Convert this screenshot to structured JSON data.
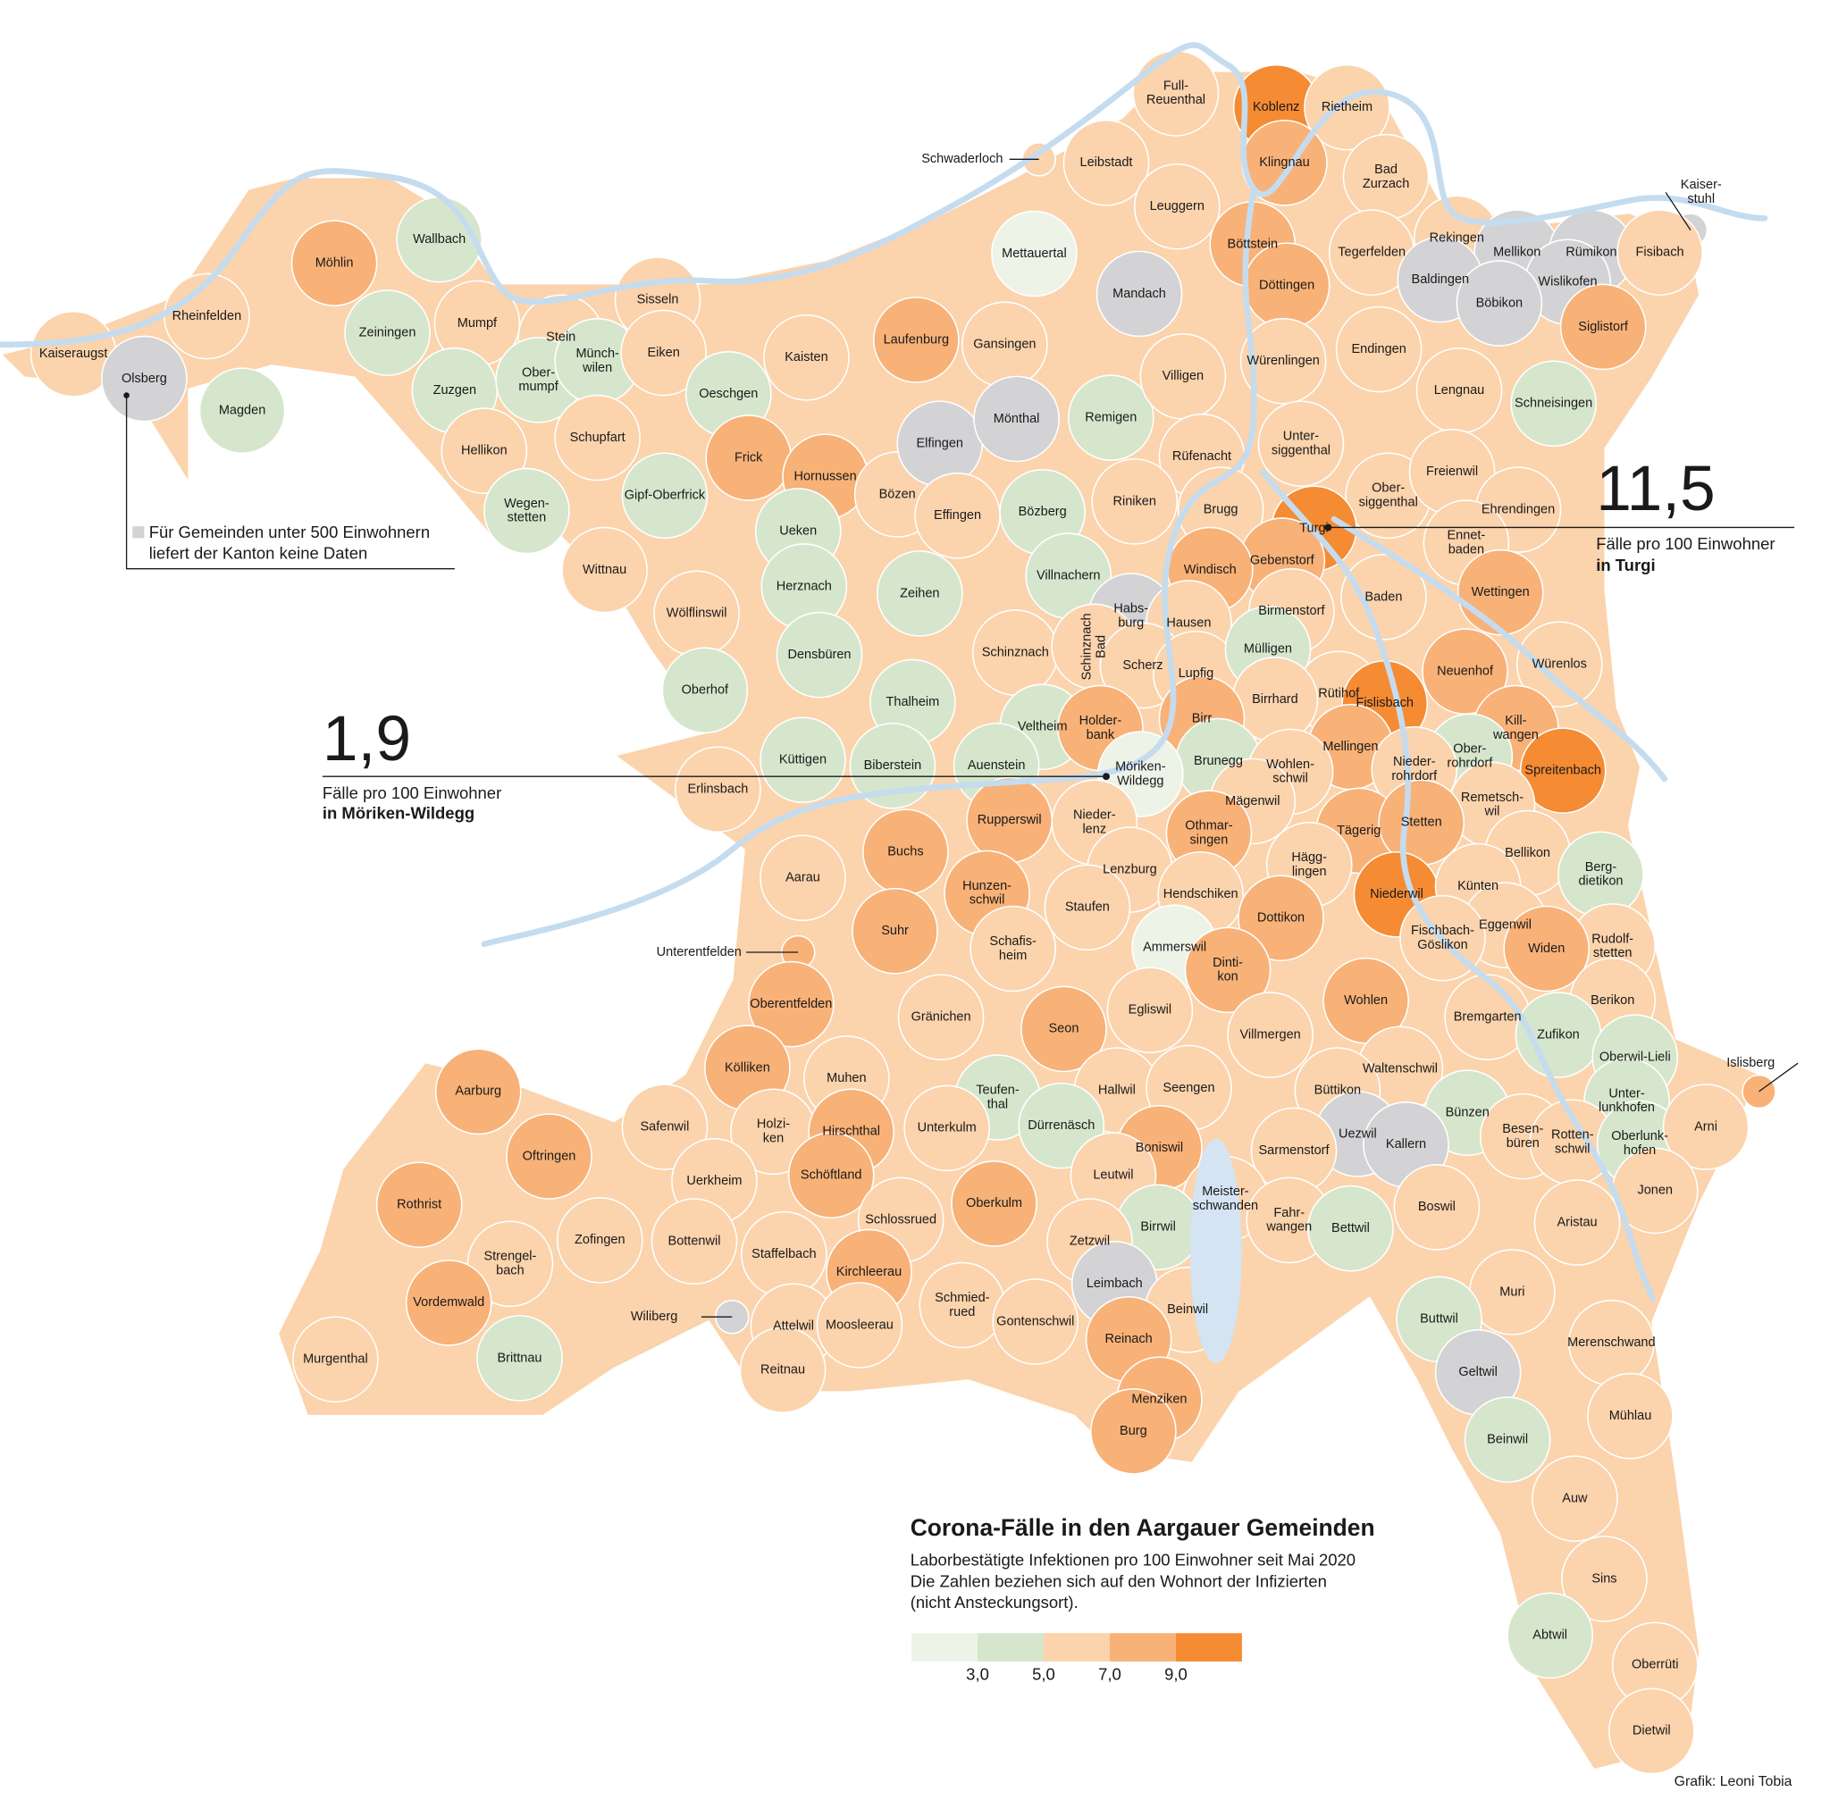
{
  "title": "Corona-Fälle in den Aargauer Gemeinden",
  "subtitle": [
    "Laborbestätigte Infektionen pro 100 Einwohner seit Mai 2020",
    "Die Zahlen beziehen sich auf den Wohnort der Infizierten",
    "(nicht Ansteckungsort)."
  ],
  "legend": {
    "colors": [
      "#eef3e8",
      "#d5e6cc",
      "#fbd3ac",
      "#f8b177",
      "#f58b33"
    ],
    "ticks": [
      {
        "value": 3,
        "label": "3,0"
      },
      {
        "value": 5,
        "label": "5,0"
      },
      {
        "value": 7,
        "label": "7,0"
      },
      {
        "value": 9,
        "label": "9,0"
      }
    ]
  },
  "no_data": {
    "color": "#d3d3d6",
    "text": [
      "Für Gemeinden unter 500 Einwohnern",
      "liefert der Kanton keine Daten"
    ]
  },
  "callouts": [
    {
      "value": "11,5",
      "text": "Fälle pro 100 Einwohner",
      "place": "in Turgi"
    },
    {
      "value": "1,9",
      "text": "Fälle pro 100 Einwohner",
      "place": "in Möriken-Wildegg"
    }
  ],
  "credit": "Grafik: Leoni Tobia",
  "municipalities": [
    {
      "name": "Kaiseraugst",
      "color": "#fbd3ac"
    },
    {
      "name": "Olsberg",
      "color": "#d3d3d6"
    },
    {
      "name": "Rheinfelden",
      "color": "#fbd3ac"
    },
    {
      "name": "Möhlin",
      "color": "#f8b177"
    },
    {
      "name": "Wallbach",
      "color": "#d5e6cc"
    },
    {
      "name": "Zeiningen",
      "color": "#d5e6cc"
    },
    {
      "name": "Magden",
      "color": "#d5e6cc"
    },
    {
      "name": "Mumpf",
      "color": "#fbd3ac"
    },
    {
      "name": "Stein",
      "color": "#fbd3ac"
    },
    {
      "name": "Zuzgen",
      "color": "#d5e6cc"
    },
    {
      "name": [
        "Ober-",
        "mumpf"
      ],
      "color": "#d5e6cc"
    },
    {
      "name": [
        "Münch-",
        "wilen"
      ],
      "color": "#d5e6cc"
    },
    {
      "name": "Sisseln",
      "color": "#fbd3ac"
    },
    {
      "name": "Eiken",
      "color": "#fbd3ac"
    },
    {
      "name": "Hellikon",
      "color": "#fbd3ac"
    },
    {
      "name": "Schupfart",
      "color": "#fbd3ac"
    },
    {
      "name": [
        "Wegen-",
        "stetten"
      ],
      "color": "#d5e6cc"
    },
    {
      "name": "Kaisten",
      "color": "#fbd3ac"
    },
    {
      "name": "Laufenburg",
      "color": "#f8b177"
    },
    {
      "name": "Gansingen",
      "color": "#fbd3ac"
    },
    {
      "name": "Mettauertal",
      "color": "#eef3e8"
    },
    {
      "name": "Oeschgen",
      "color": "#d5e6cc"
    },
    {
      "name": "Frick",
      "color": "#f8b177"
    },
    {
      "name": "Hornussen",
      "color": "#f8b177"
    },
    {
      "name": "Gipf-Oberfrick",
      "color": "#d5e6cc"
    },
    {
      "name": "Ueken",
      "color": "#d5e6cc"
    },
    {
      "name": "Wittnau",
      "color": "#fbd3ac"
    },
    {
      "name": "Herznach",
      "color": "#d5e6cc"
    },
    {
      "name": "Bözen",
      "color": "#fbd3ac"
    },
    {
      "name": "Elfingen",
      "color": "#d3d3d6"
    },
    {
      "name": "Effingen",
      "color": "#fbd3ac"
    },
    {
      "name": "Mönthal",
      "color": "#d3d3d6"
    },
    {
      "name": "Remigen",
      "color": "#d5e6cc"
    },
    {
      "name": "Bözberg",
      "color": "#d5e6cc"
    },
    {
      "name": "Zeihen",
      "color": "#d5e6cc"
    },
    {
      "name": "Villnachern",
      "color": "#d5e6cc"
    },
    {
      "name": "Wölflinswil",
      "color": "#fbd3ac"
    },
    {
      "name": "Densbüren",
      "color": "#d5e6cc"
    },
    {
      "name": "Oberhof",
      "color": "#d5e6cc"
    },
    {
      "name": "Thalheim",
      "color": "#d5e6cc"
    },
    {
      "name": "Schinznach",
      "color": "#fbd3ac"
    },
    {
      "name": "Veltheim",
      "color": "#d5e6cc"
    },
    {
      "name": "Küttigen",
      "color": "#d5e6cc"
    },
    {
      "name": "Biberstein",
      "color": "#d5e6cc"
    },
    {
      "name": "Auenstein",
      "color": "#d5e6cc"
    },
    {
      "name": "Erlinsbach",
      "color": "#fbd3ac"
    },
    {
      "name": "Aarau",
      "color": "#fbd3ac"
    },
    {
      "name": "Schwaderloch",
      "color": "#fbd3ac"
    },
    {
      "name": "Leibstadt",
      "color": "#fbd3ac"
    },
    {
      "name": [
        "Full-",
        "Reuenthal"
      ],
      "color": "#fbd3ac"
    },
    {
      "name": "Leuggern",
      "color": "#fbd3ac"
    },
    {
      "name": "Koblenz",
      "color": "#f58b33"
    },
    {
      "name": "Rietheim",
      "color": "#fbd3ac"
    },
    {
      "name": "Klingnau",
      "color": "#f8b177"
    },
    {
      "name": [
        "Bad",
        "Zurzach"
      ],
      "color": "#fbd3ac"
    },
    {
      "name": "Böttstein",
      "color": "#f8b177"
    },
    {
      "name": "Döttingen",
      "color": "#f8b177"
    },
    {
      "name": "Mandach",
      "color": "#d3d3d6"
    },
    {
      "name": "Tegerfelden",
      "color": "#fbd3ac"
    },
    {
      "name": "Rekingen",
      "color": "#fbd3ac"
    },
    {
      "name": "Mellikon",
      "color": "#d3d3d6"
    },
    {
      "name": "Rümikon",
      "color": "#d3d3d6"
    },
    {
      "name": [
        "Kaiser-",
        "stuhl"
      ],
      "color": "#d3d3d6"
    },
    {
      "name": "Fisibach",
      "color": "#fbd3ac"
    },
    {
      "name": "Baldingen",
      "color": "#d3d3d6"
    },
    {
      "name": "Wislikofen",
      "color": "#d3d3d6"
    },
    {
      "name": "Böbikon",
      "color": "#d3d3d6"
    },
    {
      "name": "Siglistorf",
      "color": "#f8b177"
    },
    {
      "name": "Villigen",
      "color": "#fbd3ac"
    },
    {
      "name": "Würenlingen",
      "color": "#fbd3ac"
    },
    {
      "name": "Endingen",
      "color": "#fbd3ac"
    },
    {
      "name": "Lengnau",
      "color": "#fbd3ac"
    },
    {
      "name": "Schneisingen",
      "color": "#d5e6cc"
    },
    {
      "name": [
        "Unter-",
        "siggenthal"
      ],
      "color": "#fbd3ac"
    },
    {
      "name": "Rüfenacht",
      "color": "#fbd3ac"
    },
    {
      "name": "Riniken",
      "color": "#fbd3ac"
    },
    {
      "name": "Brugg",
      "color": "#fbd3ac"
    },
    {
      "name": [
        "Ober-",
        "siggenthal"
      ],
      "color": "#fbd3ac"
    },
    {
      "name": "Freienwil",
      "color": "#fbd3ac"
    },
    {
      "name": "Ehrendingen",
      "color": "#fbd3ac"
    },
    {
      "name": "Turgi",
      "color": "#f58b33"
    },
    {
      "name": "Gebenstorf",
      "color": "#f8b177"
    },
    {
      "name": "Windisch",
      "color": "#f8b177"
    },
    {
      "name": [
        "Ennet-",
        "baden"
      ],
      "color": "#fbd3ac"
    },
    {
      "name": [
        "Habs-",
        "burg"
      ],
      "color": "#d3d3d6"
    },
    {
      "name": "Hausen",
      "color": "#fbd3ac"
    },
    {
      "name": "Birmenstorf",
      "color": "#fbd3ac"
    },
    {
      "name": "Baden",
      "color": "#fbd3ac"
    },
    {
      "name": "Wettingen",
      "color": "#f8b177"
    },
    {
      "name": [
        "Schinznach",
        "Bad"
      ],
      "color": "#fbd3ac"
    },
    {
      "name": "Scherz",
      "color": "#fbd3ac"
    },
    {
      "name": "Lupfig",
      "color": "#fbd3ac"
    },
    {
      "name": "Mülligen",
      "color": "#d5e6cc"
    },
    {
      "name": "Neuenhof",
      "color": "#f8b177"
    },
    {
      "name": "Würenlos",
      "color": "#fbd3ac"
    },
    {
      "name": "Rütihof",
      "color": "#fbd3ac"
    },
    {
      "name": "Fislisbach",
      "color": "#f58b33"
    },
    {
      "name": "Birrhard",
      "color": "#fbd3ac"
    },
    {
      "name": "Birr",
      "color": "#f8b177"
    },
    {
      "name": [
        "Holder-",
        "bank"
      ],
      "color": "#f8b177"
    },
    {
      "name": [
        "Kill-",
        "wangen"
      ],
      "color": "#f8b177"
    },
    {
      "name": "Spreitenbach",
      "color": "#f58b33"
    },
    {
      "name": [
        "Ober-",
        "rohrdorf"
      ],
      "color": "#d5e6cc"
    },
    {
      "name": "Mellingen",
      "color": "#f8b177"
    },
    {
      "name": [
        "Nieder-",
        "rohrdorf"
      ],
      "color": "#fbd3ac"
    },
    {
      "name": "Brunegg",
      "color": "#d5e6cc"
    },
    {
      "name": [
        "Wohlen-",
        "schwil"
      ],
      "color": "#fbd3ac"
    },
    {
      "name": [
        "Möriken-",
        "Wildegg"
      ],
      "color": "#eef3e8"
    },
    {
      "name": [
        "Remetsch-",
        "wil"
      ],
      "color": "#fbd3ac"
    },
    {
      "name": "Mägenwil",
      "color": "#fbd3ac"
    },
    {
      "name": "Tägerig",
      "color": "#f8b177"
    },
    {
      "name": "Stetten",
      "color": "#f8b177"
    },
    {
      "name": [
        "Othmar-",
        "singen"
      ],
      "color": "#f8b177"
    },
    {
      "name": [
        "Nieder-",
        "lenz"
      ],
      "color": "#fbd3ac"
    },
    {
      "name": "Rupperswil",
      "color": "#f8b177"
    },
    {
      "name": "Buchs",
      "color": "#f8b177"
    },
    {
      "name": "Bellikon",
      "color": "#fbd3ac"
    },
    {
      "name": [
        "Berg-",
        "dietikon"
      ],
      "color": "#d5e6cc"
    },
    {
      "name": "Lenzburg",
      "color": "#fbd3ac"
    },
    {
      "name": [
        "Hägg-",
        "lingen"
      ],
      "color": "#fbd3ac"
    },
    {
      "name": [
        "Hunzen-",
        "schwil"
      ],
      "color": "#f8b177"
    },
    {
      "name": "Hendschiken",
      "color": "#fbd3ac"
    },
    {
      "name": "Niederwil",
      "color": "#f58b33"
    },
    {
      "name": "Künten",
      "color": "#fbd3ac"
    },
    {
      "name": "Staufen",
      "color": "#fbd3ac"
    },
    {
      "name": "Suhr",
      "color": "#f8b177"
    },
    {
      "name": "Dottikon",
      "color": "#f8b177"
    },
    {
      "name": "Eggenwil",
      "color": "#fbd3ac"
    },
    {
      "name": [
        "Fischbach-",
        "Göslikon"
      ],
      "color": "#fbd3ac"
    },
    {
      "name": [
        "Rudolf-",
        "stetten"
      ],
      "color": "#fbd3ac"
    },
    {
      "name": "Widen",
      "color": "#f8b177"
    },
    {
      "name": [
        "Schafis-",
        "heim"
      ],
      "color": "#fbd3ac"
    },
    {
      "name": "Ammerswil",
      "color": "#eef3e8"
    },
    {
      "name": [
        "Dinti-",
        "kon"
      ],
      "color": "#f8b177"
    },
    {
      "name": "Unterentfelden",
      "color": "#f8b177"
    },
    {
      "name": "Oberentfelden",
      "color": "#f8b177"
    },
    {
      "name": "Wohlen",
      "color": "#f8b177"
    },
    {
      "name": "Berikon",
      "color": "#fbd3ac"
    },
    {
      "name": "Egliswil",
      "color": "#fbd3ac"
    },
    {
      "name": "Gränichen",
      "color": "#fbd3ac"
    },
    {
      "name": "Bremgarten",
      "color": "#fbd3ac"
    },
    {
      "name": "Seon",
      "color": "#f8b177"
    },
    {
      "name": "Villmergen",
      "color": "#fbd3ac"
    },
    {
      "name": "Zufikon",
      "color": "#d5e6cc"
    },
    {
      "name": "Oberwil-Lieli",
      "color": "#d5e6cc"
    },
    {
      "name": "Kölliken",
      "color": "#f8b177"
    },
    {
      "name": "Waltenschwil",
      "color": "#fbd3ac"
    },
    {
      "name": "Islisberg",
      "color": "#f8b177"
    },
    {
      "name": "Muhen",
      "color": "#fbd3ac"
    },
    {
      "name": [
        "Teufen-",
        "thal"
      ],
      "color": "#d5e6cc"
    },
    {
      "name": "Hallwil",
      "color": "#fbd3ac"
    },
    {
      "name": "Seengen",
      "color": "#fbd3ac"
    },
    {
      "name": "Büttikon",
      "color": "#fbd3ac"
    },
    {
      "name": [
        "Unter-",
        "lunkhofen"
      ],
      "color": "#d5e6cc"
    },
    {
      "name": "Aarburg",
      "color": "#f8b177"
    },
    {
      "name": "Bünzen",
      "color": "#d5e6cc"
    },
    {
      "name": "Safenwil",
      "color": "#fbd3ac"
    },
    {
      "name": [
        "Holzi-",
        "ken"
      ],
      "color": "#fbd3ac"
    },
    {
      "name": "Hirschthal",
      "color": "#f8b177"
    },
    {
      "name": "Unterkulm",
      "color": "#fbd3ac"
    },
    {
      "name": "Dürrenäsch",
      "color": "#d5e6cc"
    },
    {
      "name": "Uezwil",
      "color": "#d3d3d6"
    },
    {
      "name": [
        "Besen-",
        "büren"
      ],
      "color": "#fbd3ac"
    },
    {
      "name": [
        "Rotten-",
        "schwil"
      ],
      "color": "#fbd3ac"
    },
    {
      "name": [
        "Oberlunk-",
        "hofen"
      ],
      "color": "#d5e6cc"
    },
    {
      "name": "Arni",
      "color": "#fbd3ac"
    },
    {
      "name": "Kallern",
      "color": "#d3d3d6"
    },
    {
      "name": "Boniswil",
      "color": "#f8b177"
    },
    {
      "name": "Sarmenstorf",
      "color": "#fbd3ac"
    },
    {
      "name": "Oftringen",
      "color": "#f8b177"
    },
    {
      "name": "Uerkheim",
      "color": "#fbd3ac"
    },
    {
      "name": "Schöftland",
      "color": "#f8b177"
    },
    {
      "name": "Leutwil",
      "color": "#fbd3ac"
    },
    {
      "name": "Jonen",
      "color": "#fbd3ac"
    },
    {
      "name": "Rothrist",
      "color": "#f8b177"
    },
    {
      "name": "Oberkulm",
      "color": "#f8b177"
    },
    {
      "name": [
        "Meister-",
        "schwanden"
      ],
      "color": "#fbd3ac"
    },
    {
      "name": "Boswil",
      "color": "#fbd3ac"
    },
    {
      "name": "Zofingen",
      "color": "#fbd3ac"
    },
    {
      "name": "Bottenwil",
      "color": "#fbd3ac"
    },
    {
      "name": "Schlossrued",
      "color": "#fbd3ac"
    },
    {
      "name": [
        "Fahr-",
        "wangen"
      ],
      "color": "#fbd3ac"
    },
    {
      "name": "Aristau",
      "color": "#fbd3ac"
    },
    {
      "name": "Bettwil",
      "color": "#d5e6cc"
    },
    {
      "name": "Birrwil",
      "color": "#d5e6cc"
    },
    {
      "name": "Zetzwil",
      "color": "#fbd3ac"
    },
    {
      "name": [
        "Strengel-",
        "bach"
      ],
      "color": "#fbd3ac"
    },
    {
      "name": "Staffelbach",
      "color": "#fbd3ac"
    },
    {
      "name": "Kirchleerau",
      "color": "#f8b177"
    },
    {
      "name": "Leimbach",
      "color": "#d3d3d6"
    },
    {
      "name": "Muri",
      "color": "#fbd3ac"
    },
    {
      "name": "Vordemwald",
      "color": "#f8b177"
    },
    {
      "name": [
        "Schmied-",
        "rued"
      ],
      "color": "#fbd3ac"
    },
    {
      "name": "Beinwil",
      "color": "#fbd3ac"
    },
    {
      "name": "Wiliberg",
      "color": "#d3d3d6"
    },
    {
      "name": "Attelwil",
      "color": "#fbd3ac"
    },
    {
      "name": "Moosleerau",
      "color": "#fbd3ac"
    },
    {
      "name": "Gontenschwil",
      "color": "#fbd3ac"
    },
    {
      "name": "Buttwil",
      "color": "#d5e6cc"
    },
    {
      "name": "Reinach",
      "color": "#f8b177"
    },
    {
      "name": "Merenschwand",
      "color": "#fbd3ac"
    },
    {
      "name": "Murgenthal",
      "color": "#fbd3ac"
    },
    {
      "name": "Brittnau",
      "color": "#d5e6cc"
    },
    {
      "name": "Reitnau",
      "color": "#fbd3ac"
    },
    {
      "name": "Geltwil",
      "color": "#d3d3d6"
    },
    {
      "name": "Menziken",
      "color": "#f8b177"
    },
    {
      "name": "Mühlau",
      "color": "#fbd3ac"
    },
    {
      "name": "Burg",
      "color": "#f8b177"
    },
    {
      "name": "Beinwil",
      "color": "#d5e6cc"
    },
    {
      "name": "Auw",
      "color": "#fbd3ac"
    },
    {
      "name": "Sins",
      "color": "#fbd3ac"
    },
    {
      "name": "Abtwil",
      "color": "#d5e6cc"
    },
    {
      "name": "Oberrüti",
      "color": "#fbd3ac"
    },
    {
      "name": "Dietwil",
      "color": "#fbd3ac"
    }
  ]
}
